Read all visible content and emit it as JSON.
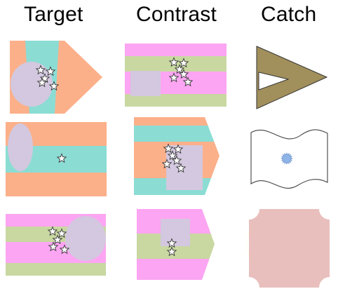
{
  "headers": {
    "target": "Target",
    "contrast": "Contrast",
    "catch": "Catch"
  },
  "colors": {
    "peach": "#fbb08a",
    "teal": "#8bddd4",
    "pink": "#fca5f2",
    "sage": "#c9d8a1",
    "lavender": "#d3c8df",
    "olive": "#a18f5c",
    "blue_dot": "#8fb4e8",
    "rose": "#e8bfbd",
    "yellow": "#fff200",
    "star_fill": "#ffffff",
    "star_stroke": "#333333"
  },
  "rows": [
    {
      "target": {
        "shape": "pennant",
        "stripes": "vertical",
        "stripe_colors": [
          "peach",
          "teal",
          "peach"
        ],
        "emblem": "ellipse",
        "emblem_color": "lavender",
        "stars": 5
      },
      "contrast": {
        "shape": "rectangle",
        "stripes": "horizontal",
        "stripe_colors": [
          "pink",
          "sage",
          "pink",
          "sage"
        ],
        "emblem": "rectangle",
        "emblem_color": "lavender",
        "stars": 6
      },
      "catch": {
        "shape": "chevron-triangle",
        "color": "olive"
      }
    },
    {
      "target": {
        "shape": "rectangle",
        "stripes": "horizontal",
        "stripe_colors": [
          "peach",
          "teal",
          "peach"
        ],
        "emblem": "ellipse",
        "emblem_color": "lavender",
        "stars": 1
      },
      "contrast": {
        "shape": "pennant",
        "stripes": "horizontal",
        "stripe_colors": [
          "peach",
          "teal",
          "peach",
          "teal"
        ],
        "emblem": "rectangle",
        "emblem_color": "lavender",
        "stars": 6
      },
      "catch": {
        "shape": "waving-flag",
        "color": "white",
        "emblem": "starburst",
        "emblem_color": "blue_dot"
      }
    },
    {
      "target": {
        "shape": "rectangle",
        "stripes": "horizontal",
        "stripe_colors": [
          "pink",
          "sage",
          "pink",
          "sage"
        ],
        "emblem": "ellipse",
        "emblem_color": "lavender",
        "stars": 5
      },
      "contrast": {
        "shape": "pennant",
        "stripes": "horizontal",
        "stripe_colors": [
          "pink",
          "sage",
          "pink"
        ],
        "emblem": "rectangle",
        "emblem_color": "lavender",
        "stars": 2
      },
      "catch": {
        "shape": "notched-square",
        "color": "rose",
        "emblem": "crescent",
        "emblem_color": "yellow"
      }
    }
  ]
}
